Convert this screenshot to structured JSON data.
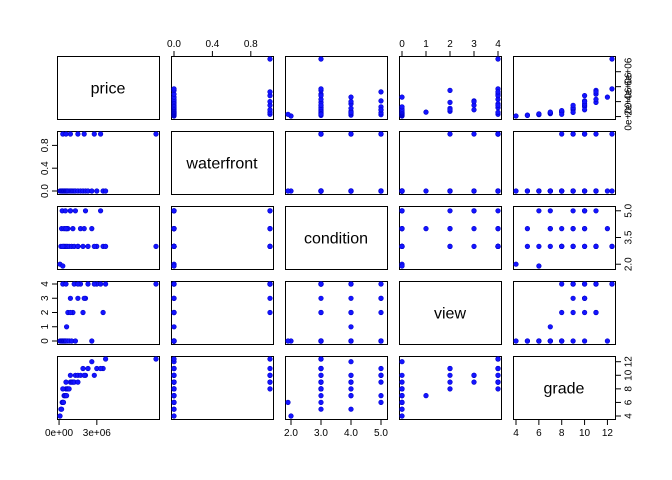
{
  "chart_data": {
    "type": "scatter",
    "subtype": "pairs-matrix",
    "variables": [
      "price",
      "waterfront",
      "condition",
      "view",
      "grade"
    ],
    "point_color": "#1414ff",
    "axes": {
      "price": {
        "range": [
          75000,
          7700000
        ],
        "ticks": [
          0,
          3000000,
          4000000,
          6000000
        ],
        "tick_labels": [
          "0e+00",
          "3e+06",
          "4e+06",
          "6e+06"
        ]
      },
      "waterfront": {
        "range": [
          0,
          1
        ],
        "ticks": [
          0,
          0.4,
          0.8
        ],
        "tick_labels": [
          "0.0",
          "0.4",
          "0.8"
        ]
      },
      "condition": {
        "range": [
          1.9,
          5.1
        ],
        "ticks": [
          2.0,
          3.0,
          3.5,
          4.0,
          5.0
        ],
        "tick_labels": [
          "2.0",
          "3.0",
          "3.5",
          "4.0",
          "5.0"
        ]
      },
      "view": {
        "range": [
          0,
          4
        ],
        "ticks": [
          0,
          1,
          2,
          3,
          4
        ],
        "tick_labels": [
          "0",
          "1",
          "2",
          "3",
          "4"
        ]
      },
      "grade": {
        "range": [
          4,
          12.4
        ],
        "ticks": [
          4,
          6,
          8,
          10,
          12
        ],
        "tick_labels": [
          "4",
          "6",
          "8",
          "10",
          "12"
        ]
      }
    },
    "top_axis_labels": {
      "waterfront": [
        {
          "v": 0,
          "t": "0.0"
        },
        {
          "v": 0.4,
          "t": "0.4"
        },
        {
          "v": 0.8,
          "t": "0.8"
        }
      ],
      "view": [
        {
          "v": 0,
          "t": "0"
        },
        {
          "v": 1,
          "t": "1"
        },
        {
          "v": 2,
          "t": "2"
        },
        {
          "v": 3,
          "t": "3"
        },
        {
          "v": 4,
          "t": "4"
        }
      ]
    },
    "right_axis_labels": {
      "price": [
        {
          "v": 0,
          "t": "0e+00"
        },
        {
          "v": 2000000,
          "t": "2e+06"
        },
        {
          "v": 4000000,
          "t": "4e+06"
        },
        {
          "v": 6000000,
          "t": "6e+06"
        }
      ],
      "condition": [
        {
          "v": 2.0,
          "t": "2.0"
        },
        {
          "v": 3.5,
          "t": "3.5"
        },
        {
          "v": 5.0,
          "t": "5.0"
        }
      ],
      "grade": [
        {
          "v": 4,
          "t": "4"
        },
        {
          "v": 6,
          "t": "6"
        },
        {
          "v": 8,
          "t": "8"
        },
        {
          "v": 10,
          "t": "10"
        },
        {
          "v": 12,
          "t": "12"
        }
      ]
    },
    "bottom_axis_labels": {
      "price": [
        {
          "v": 0,
          "t": "0e+00"
        },
        {
          "v": 3000000,
          "t": "3e+06"
        }
      ],
      "condition": [
        {
          "v": 2.0,
          "t": "2.0"
        },
        {
          "v": 3.0,
          "t": "3.0"
        },
        {
          "v": 4.0,
          "t": "4.0"
        },
        {
          "v": 5.0,
          "t": "5.0"
        }
      ],
      "grade": [
        {
          "v": 4,
          "t": "4"
        },
        {
          "v": 6,
          "t": "6"
        },
        {
          "v": 8,
          "t": "8"
        },
        {
          "v": 10,
          "t": "10"
        },
        {
          "v": 12,
          "t": "12"
        }
      ]
    },
    "left_axis_labels": {
      "waterfront": [
        {
          "v": 0,
          "t": "0.0"
        },
        {
          "v": 0.4,
          "t": "0.4"
        },
        {
          "v": 0.8,
          "t": "0.8"
        }
      ],
      "view": [
        {
          "v": 0,
          "t": "0"
        },
        {
          "v": 1,
          "t": "1"
        },
        {
          "v": 2,
          "t": "2"
        },
        {
          "v": 3,
          "t": "3"
        },
        {
          "v": 4,
          "t": "4"
        }
      ]
    },
    "observations": [
      {
        "price": 75000,
        "waterfront": 0,
        "condition": 2,
        "view": 0,
        "grade": 4
      },
      {
        "price": 150000,
        "waterfront": 0,
        "condition": 3,
        "view": 0,
        "grade": 5
      },
      {
        "price": 200000,
        "waterfront": 0,
        "condition": 4,
        "view": 0,
        "grade": 5
      },
      {
        "price": 250000,
        "waterfront": 0,
        "condition": 5,
        "view": 0,
        "grade": 6
      },
      {
        "price": 300000,
        "waterfront": 0,
        "condition": 1.9,
        "view": 0,
        "grade": 6
      },
      {
        "price": 350000,
        "waterfront": 0,
        "condition": 3,
        "view": 0,
        "grade": 6
      },
      {
        "price": 400000,
        "waterfront": 0,
        "condition": 4,
        "view": 0,
        "grade": 7
      },
      {
        "price": 450000,
        "waterfront": 0,
        "condition": 3,
        "view": 0,
        "grade": 7
      },
      {
        "price": 500000,
        "waterfront": 0,
        "condition": 5,
        "view": 0,
        "grade": 7
      },
      {
        "price": 550000,
        "waterfront": 0,
        "condition": 3,
        "view": 0,
        "grade": 8
      },
      {
        "price": 600000,
        "waterfront": 0,
        "condition": 4,
        "view": 1,
        "grade": 7
      },
      {
        "price": 650000,
        "waterfront": 0,
        "condition": 3,
        "view": 0,
        "grade": 8
      },
      {
        "price": 700000,
        "waterfront": 0,
        "condition": 4,
        "view": 2,
        "grade": 8
      },
      {
        "price": 800000,
        "waterfront": 0,
        "condition": 3,
        "view": 0,
        "grade": 8
      },
      {
        "price": 900000,
        "waterfront": 0,
        "condition": 5,
        "view": 3,
        "grade": 9
      },
      {
        "price": 1000000,
        "waterfront": 0,
        "condition": 3,
        "view": 0,
        "grade": 9
      },
      {
        "price": 1100000,
        "waterfront": 0,
        "condition": 4,
        "view": 2,
        "grade": 9
      },
      {
        "price": 1200000,
        "waterfront": 0,
        "condition": 3,
        "view": 4,
        "grade": 9
      },
      {
        "price": 1300000,
        "waterfront": 0,
        "condition": 5,
        "view": 0,
        "grade": 10
      },
      {
        "price": 1500000,
        "waterfront": 0,
        "condition": 3,
        "view": 3,
        "grade": 10
      },
      {
        "price": 1700000,
        "waterfront": 0,
        "condition": 4,
        "view": 4,
        "grade": 10
      },
      {
        "price": 1900000,
        "waterfront": 0,
        "condition": 3,
        "view": 2,
        "grade": 11
      },
      {
        "price": 2100000,
        "waterfront": 0,
        "condition": 5,
        "view": 3,
        "grade": 10
      },
      {
        "price": 2300000,
        "waterfront": 0,
        "condition": 3,
        "view": 4,
        "grade": 11
      },
      {
        "price": 2600000,
        "waterfront": 0,
        "condition": 4,
        "view": 0,
        "grade": 12
      },
      {
        "price": 3000000,
        "waterfront": 0,
        "condition": 3,
        "view": 4,
        "grade": 11
      },
      {
        "price": 3500000,
        "waterfront": 0,
        "condition": 3,
        "view": 2,
        "grade": 11
      },
      {
        "price": 3700000,
        "waterfront": 0,
        "condition": 3,
        "view": 4,
        "grade": 12.4
      },
      {
        "price": 300000,
        "waterfront": 1,
        "condition": 3,
        "view": 4,
        "grade": 8
      },
      {
        "price": 550000,
        "waterfront": 1,
        "condition": 4,
        "view": 4,
        "grade": 9
      },
      {
        "price": 900000,
        "waterfront": 1,
        "condition": 5,
        "view": 2,
        "grade": 10
      },
      {
        "price": 1500000,
        "waterfront": 1,
        "condition": 3,
        "view": 4,
        "grade": 9
      },
      {
        "price": 2000000,
        "waterfront": 1,
        "condition": 4,
        "view": 3,
        "grade": 10
      },
      {
        "price": 2800000,
        "waterfront": 1,
        "condition": 3,
        "view": 4,
        "grade": 10
      },
      {
        "price": 3300000,
        "waterfront": 1,
        "condition": 5,
        "view": 4,
        "grade": 11
      },
      {
        "price": 7700000,
        "waterfront": 1,
        "condition": 3,
        "view": 4,
        "grade": 12.4
      }
    ]
  }
}
